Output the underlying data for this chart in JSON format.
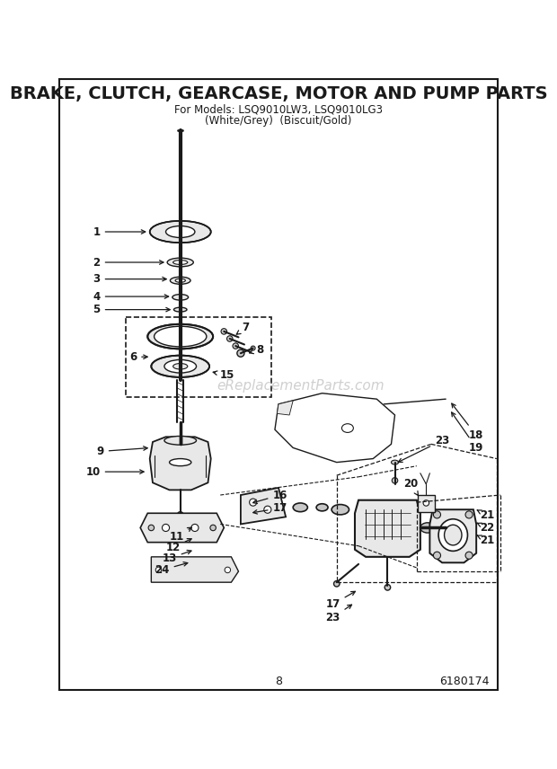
{
  "title": "BRAKE, CLUTCH, GEARCASE, MOTOR AND PUMP PARTS",
  "subtitle1": "For Models: LSQ9010LW3, LSQ9010LG3",
  "subtitle2": "(White/Grey)  (Biscuit/Gold)",
  "watermark": "eReplacementParts.com",
  "page_number": "8",
  "doc_number": "6180174",
  "bg_color": "#ffffff",
  "line_color": "#1a1a1a",
  "gray_fill": "#c8c8c8",
  "light_gray": "#e8e8e8",
  "title_fontsize": 14,
  "sub_fontsize": 8.5,
  "label_fontsize": 8.5
}
